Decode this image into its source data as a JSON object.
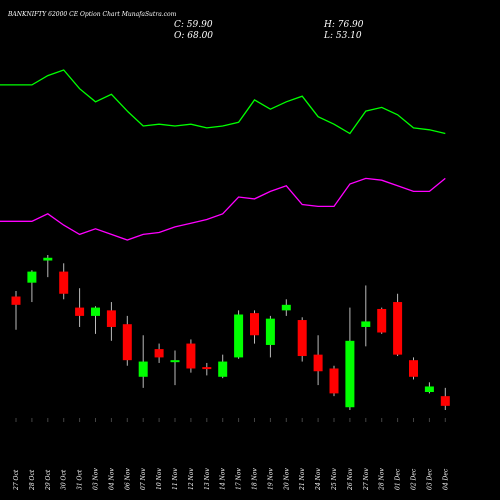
{
  "chart_data": {
    "type": "candlestick",
    "title": "BANKNIFTY 62000  CE Option  Chart MunafaSutra.com",
    "ohlc_summary": {
      "c_label": "C: 59.90",
      "h_label": "H: 76.90",
      "o_label": "O: 68.00",
      "l_label": "L: 53.10"
    },
    "categories": [
      "27 Oct",
      "28 Oct",
      "29 Oct",
      "30 Oct",
      "31 Oct",
      "03 Nov",
      "04 Nov",
      "06 Nov",
      "07 Nov",
      "10 Nov",
      "11 Nov",
      "12 Nov",
      "13 Nov",
      "14 Nov",
      "17 Nov",
      "18 Nov",
      "19 Nov",
      "20 Nov",
      "21 Nov",
      "24 Nov",
      "25 Nov",
      "26 Nov",
      "27 Nov",
      "28 Nov",
      "01 Dec",
      "02 Dec",
      "03 Dec",
      "04 Dec"
    ],
    "candles": [
      {
        "o": 0.42,
        "h": 0.46,
        "l": 0.18,
        "c": 0.36
      },
      {
        "o": 0.52,
        "h": 0.61,
        "l": 0.38,
        "c": 0.6
      },
      {
        "o": 0.68,
        "h": 0.72,
        "l": 0.56,
        "c": 0.7
      },
      {
        "o": 0.6,
        "h": 0.66,
        "l": 0.4,
        "c": 0.44
      },
      {
        "o": 0.34,
        "h": 0.48,
        "l": 0.2,
        "c": 0.28
      },
      {
        "o": 0.28,
        "h": 0.35,
        "l": 0.15,
        "c": 0.34
      },
      {
        "o": 0.32,
        "h": 0.38,
        "l": 0.1,
        "c": 0.2
      },
      {
        "o": 0.22,
        "h": 0.28,
        "l": -0.08,
        "c": -0.04
      },
      {
        "o": -0.16,
        "h": 0.14,
        "l": -0.24,
        "c": -0.05
      },
      {
        "o": 0.04,
        "h": 0.08,
        "l": -0.06,
        "c": -0.02
      },
      {
        "o": -0.04,
        "h": 0.03,
        "l": -0.22,
        "c": -0.04
      },
      {
        "o": 0.08,
        "h": 0.11,
        "l": -0.13,
        "c": -0.1
      },
      {
        "o": -0.09,
        "h": -0.06,
        "l": -0.15,
        "c": -0.1
      },
      {
        "o": -0.16,
        "h": 0.0,
        "l": -0.17,
        "c": -0.05
      },
      {
        "o": -0.02,
        "h": 0.32,
        "l": -0.03,
        "c": 0.29
      },
      {
        "o": 0.3,
        "h": 0.32,
        "l": 0.08,
        "c": 0.14
      },
      {
        "o": 0.07,
        "h": 0.28,
        "l": -0.02,
        "c": 0.26
      },
      {
        "o": 0.32,
        "h": 0.4,
        "l": 0.28,
        "c": 0.36
      },
      {
        "o": 0.25,
        "h": 0.27,
        "l": -0.05,
        "c": -0.01
      },
      {
        "o": 0.0,
        "h": 0.14,
        "l": -0.22,
        "c": -0.12
      },
      {
        "o": -0.1,
        "h": -0.08,
        "l": -0.3,
        "c": -0.28
      },
      {
        "o": -0.38,
        "h": 0.34,
        "l": -0.4,
        "c": 0.1
      },
      {
        "o": 0.2,
        "h": 0.5,
        "l": 0.06,
        "c": 0.24
      },
      {
        "o": 0.33,
        "h": 0.34,
        "l": 0.15,
        "c": 0.16
      },
      {
        "o": 0.38,
        "h": 0.44,
        "l": -0.01,
        "c": 0.0
      },
      {
        "o": -0.04,
        "h": -0.02,
        "l": -0.18,
        "c": -0.16
      },
      {
        "o": -0.27,
        "h": -0.2,
        "l": -0.28,
        "c": -0.23
      },
      {
        "o": -0.3,
        "h": -0.24,
        "l": -0.4,
        "c": -0.37
      }
    ],
    "series": [
      {
        "color": "#00ff00",
        "values": [
          93,
          93,
          98,
          101,
          91,
          84,
          88,
          79,
          71,
          72,
          71,
          72,
          70,
          71,
          73,
          85,
          80,
          84,
          87,
          76,
          72,
          67,
          79,
          81,
          77,
          70,
          69,
          67
        ]
      },
      {
        "color": "#ff00ff",
        "values": [
          20,
          20,
          24,
          18,
          13,
          16,
          13,
          10,
          13,
          14,
          17,
          19,
          21,
          24,
          33,
          32,
          36,
          39,
          29,
          28,
          28,
          40,
          43,
          42,
          39,
          36,
          36,
          43
        ]
      }
    ],
    "colors": {
      "up": "#00ff00",
      "down": "#ff0000",
      "background": "#000000",
      "text": "#ffffff"
    }
  }
}
